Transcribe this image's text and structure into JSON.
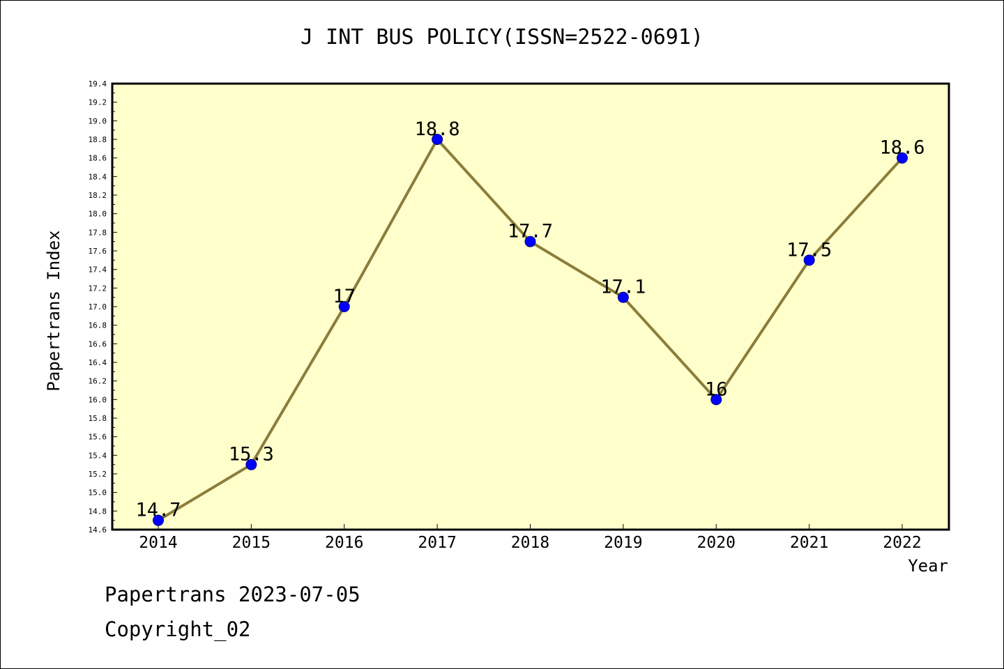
{
  "page": {
    "title": "J INT BUS POLICY(ISSN=2522-0691)",
    "footer_line1": "Papertrans 2023-07-05",
    "footer_line2": "Copyright_02"
  },
  "colors": {
    "plot_background": "#ffffcc",
    "line": "#8b7d3a",
    "marker": "#0000ff",
    "axis": "#000000"
  },
  "chart_data": {
    "type": "line",
    "title": "J INT BUS POLICY(ISSN=2522-0691)",
    "xlabel": "Year",
    "ylabel": "Papertrans Index",
    "categories": [
      "2014",
      "2015",
      "2016",
      "2017",
      "2018",
      "2019",
      "2020",
      "2021",
      "2022"
    ],
    "values": [
      14.7,
      15.3,
      17,
      18.8,
      17.7,
      17.1,
      16,
      17.5,
      18.6
    ],
    "data_labels": [
      "14.7",
      "15.3",
      "17",
      "18.8",
      "17.7",
      "17.1",
      "16",
      "17.5",
      "18.6"
    ],
    "ylim": [
      14.6,
      19.4
    ],
    "y_ticks": [
      "14.6",
      "14.8",
      "15.0",
      "15.2",
      "15.4",
      "15.6",
      "15.8",
      "16.0",
      "16.2",
      "16.4",
      "16.6",
      "16.8",
      "17.0",
      "17.2",
      "17.4",
      "17.6",
      "17.8",
      "18.0",
      "18.2",
      "18.4",
      "18.6",
      "18.8",
      "19.0",
      "19.2",
      "19.4"
    ],
    "grid": false,
    "legend": "none"
  }
}
